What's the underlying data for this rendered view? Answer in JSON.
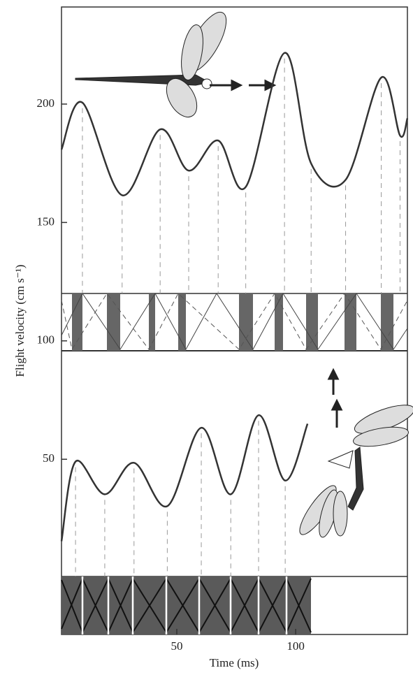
{
  "chart_data": {
    "type": "line",
    "y_label": "Flight velocity (cm s⁻¹)",
    "x_label": "Time (ms)",
    "xlim": [
      1.5,
      147
    ],
    "ylim": [
      -24,
      241
    ],
    "xticks": [
      50,
      100
    ],
    "yticks": [
      50,
      100,
      150,
      200
    ],
    "series": [
      {
        "color": "#333333",
        "x": [
          1.5,
          10.3,
          27,
          43,
          55,
          67.4,
          79,
          95.3,
          106.5,
          121,
          136,
          143.9,
          147
        ],
        "values": [
          180.8,
          200.6,
          161.5,
          189.3,
          171.9,
          184.6,
          165,
          221.6,
          174.9,
          168,
          211.2,
          186.7,
          194
        ]
      },
      {
        "color": "#333333",
        "x": [
          1.5,
          7.4,
          19.7,
          32,
          46,
          60.3,
          72.7,
          84.4,
          95.6,
          105
        ],
        "values": [
          15.4,
          49,
          35.2,
          48.5,
          30.2,
          63.3,
          35.2,
          68.6,
          41,
          65
        ]
      }
    ]
  }
}
